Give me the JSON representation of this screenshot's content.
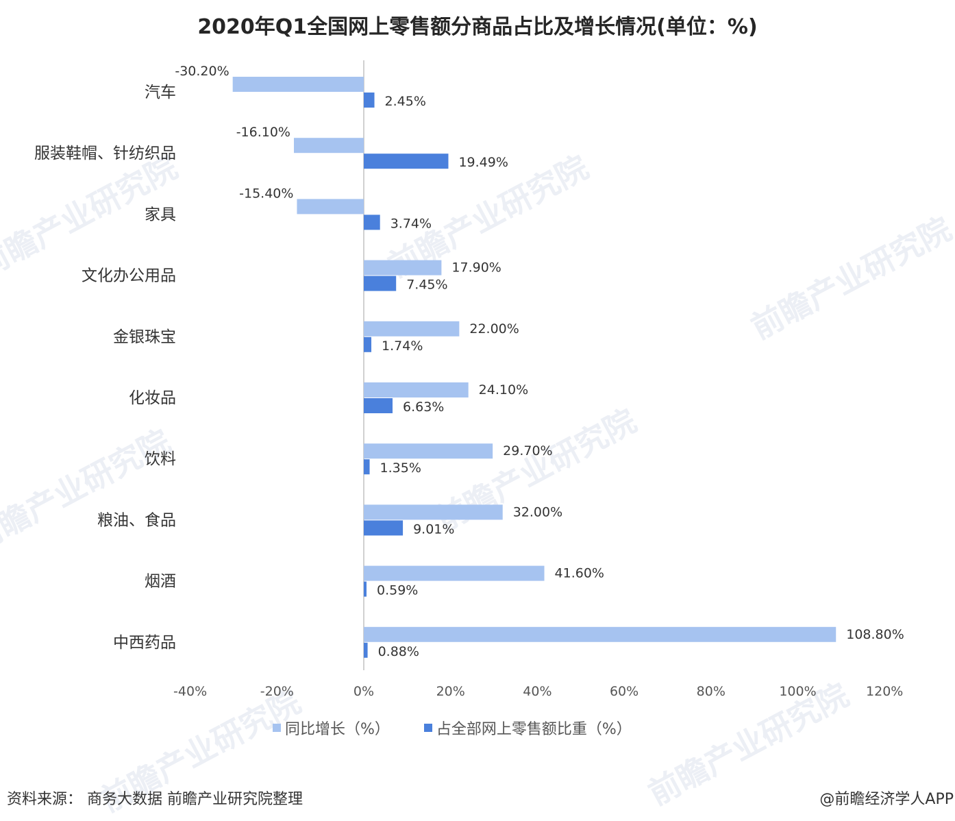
{
  "title": "2020年Q1全国网上零售额分商品占比及增长情况(单位：%)",
  "footer": {
    "source": "资料来源：  商务大数据 前瞻产业研究院整理",
    "credit": "@前瞻经济学人APP"
  },
  "watermark": {
    "text": "前瞻产业研究院"
  },
  "colors": {
    "growth": "#a6c3f0",
    "share": "#4a80dc",
    "axis": "#d0d0d0"
  },
  "chart_data": {
    "type": "bar",
    "orientation": "horizontal",
    "title": "2020年Q1全国网上零售额分商品占比及增长情况(单位：%)",
    "categories": [
      "汽车",
      "服装鞋帽、针纺织品",
      "家具",
      "文化办公用品",
      "金银珠宝",
      "化妆品",
      "饮料",
      "粮油、食品",
      "烟酒",
      "中西药品"
    ],
    "series": [
      {
        "name": "同比增长（%）",
        "values": [
          -30.2,
          -16.1,
          -15.4,
          17.9,
          22.0,
          24.1,
          29.7,
          32.0,
          41.6,
          108.8
        ],
        "labels": [
          "-30.20%",
          "-16.10%",
          "-15.40%",
          "17.90%",
          "22.00%",
          "24.10%",
          "29.70%",
          "32.00%",
          "41.60%",
          "108.80%"
        ]
      },
      {
        "name": "占全部网上零售额比重（%）",
        "values": [
          2.45,
          19.49,
          3.74,
          7.45,
          1.74,
          6.63,
          1.35,
          9.01,
          0.59,
          0.88
        ],
        "labels": [
          "2.45%",
          "19.49%",
          "3.74%",
          "7.45%",
          "1.74%",
          "6.63%",
          "1.35%",
          "9.01%",
          "0.59%",
          "0.88%"
        ]
      }
    ],
    "xlim": [
      -40,
      120
    ],
    "xticks": [
      -40,
      -20,
      0,
      20,
      40,
      60,
      80,
      100,
      120
    ],
    "xtick_labels": [
      "-40%",
      "-20%",
      "0%",
      "20%",
      "40%",
      "60%",
      "80%",
      "100%",
      "120%"
    ],
    "legend_position": "bottom",
    "grid": false
  }
}
